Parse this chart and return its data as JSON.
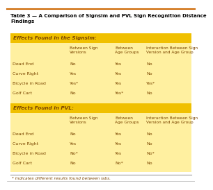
{
  "title": "Table 3 — A Comparison of Signsim and PVL Sign Recognition Distance\nFindings",
  "outer_bg": "#FFFFF0",
  "table_bg": "#FFF0A0",
  "header_bg": "#F0C000",
  "top_border_color": "#CC6600",
  "title_color": "#000000",
  "header_text_color": "#7A4500",
  "body_text_color": "#7A4500",
  "footnote_color": "#7A4500",
  "col_headers": [
    "Between Sign\nVersions",
    "Between\nAge Groups",
    "Interaction Between Sign\nVersion and Age Group"
  ],
  "section1_title": "Effects Found in the Signsim:",
  "section1_rows": [
    [
      "Dead End",
      "No",
      "Yes",
      "No"
    ],
    [
      "Curve Right",
      "Yes",
      "Yes",
      "No"
    ],
    [
      "Bicycle in Road",
      "Yes*",
      "Yes",
      "Yes*"
    ],
    [
      "Golf Cart",
      "No",
      "Yes*",
      "No"
    ]
  ],
  "section2_title": "Effects Found in PVL:",
  "section2_rows": [
    [
      "Dead End",
      "No",
      "Yes",
      "No"
    ],
    [
      "Curve Right",
      "Yes",
      "Yes",
      "No"
    ],
    [
      "Bicycle in Road",
      "No*",
      "Yes",
      "No*"
    ],
    [
      "Golf Cart",
      "No",
      "No*",
      "No"
    ]
  ],
  "footnote": "* Indicates different results found between labs."
}
